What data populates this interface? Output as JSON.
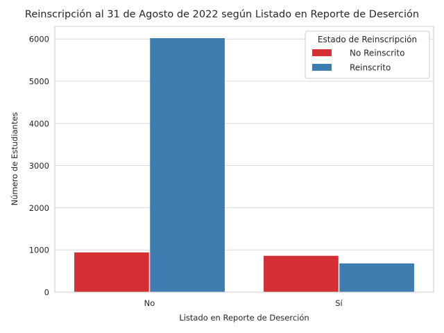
{
  "chart_data": {
    "type": "bar",
    "title": "Reinscripción al 31 de Agosto de 2022 según Listado en Reporte de Deserción",
    "xlabel": "Listado en Reporte de Deserción",
    "ylabel": "Número de Estudiantes",
    "categories": [
      "No",
      "Sí"
    ],
    "series": [
      {
        "name": "No Reinscrito",
        "values": [
          940,
          860
        ],
        "color": "#d62f33"
      },
      {
        "name": "Reinscrito",
        "values": [
          6020,
          680
        ],
        "color": "#3f7cb0"
      }
    ],
    "ylim": [
      0,
      6300
    ],
    "yticks": [
      0,
      1000,
      2000,
      3000,
      4000,
      5000,
      6000
    ],
    "grid": true,
    "legend": {
      "title": "Estado de Reinscripción",
      "placement": "top-right"
    }
  }
}
